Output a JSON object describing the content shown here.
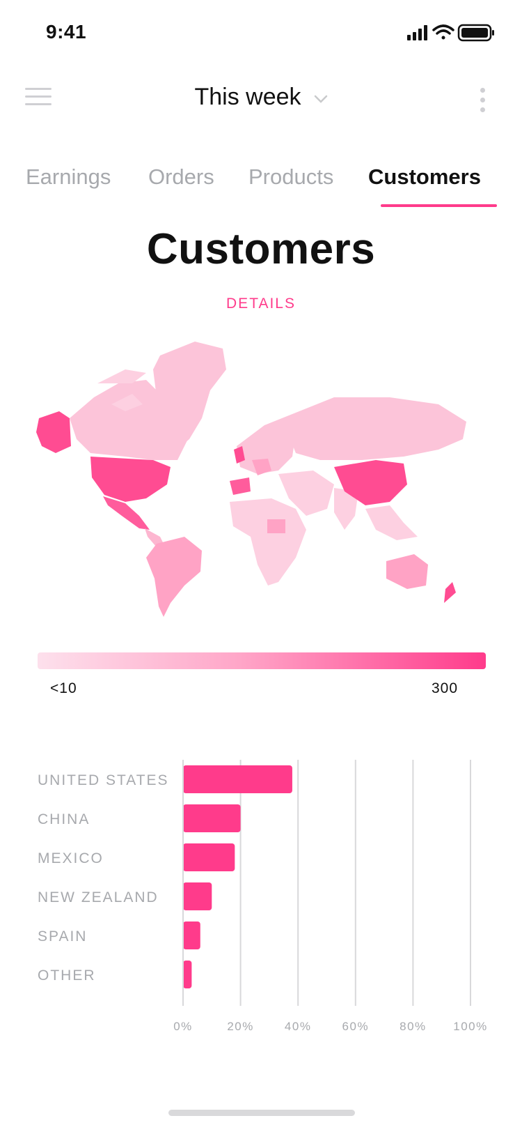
{
  "status_bar": {
    "time": "9:41"
  },
  "header": {
    "period_label": "This week"
  },
  "tabs": [
    {
      "label": "Earnings",
      "active": false
    },
    {
      "label": "Orders",
      "active": false
    },
    {
      "label": "Products",
      "active": false
    },
    {
      "label": "Customers",
      "active": true
    }
  ],
  "page": {
    "title": "Customers",
    "details_label": "DETAILS"
  },
  "map_legend": {
    "min_label": "<10",
    "max_label": "300"
  },
  "colors": {
    "accent": "#ff3b8b",
    "light": "#fde0ec",
    "mid": "#ffa6c8",
    "muted_text": "#a7a9ad"
  },
  "chart_data": {
    "type": "bar",
    "orientation": "horizontal",
    "categories": [
      "UNITED STATES",
      "CHINA",
      "MEXICO",
      "NEW ZEALAND",
      "SPAIN",
      "OTHER"
    ],
    "values": [
      38,
      20,
      18,
      10,
      6,
      3
    ],
    "x_ticks": [
      "0%",
      "20%",
      "40%",
      "60%",
      "80%",
      "100%"
    ],
    "xlim": [
      0,
      100
    ],
    "grid": true
  }
}
